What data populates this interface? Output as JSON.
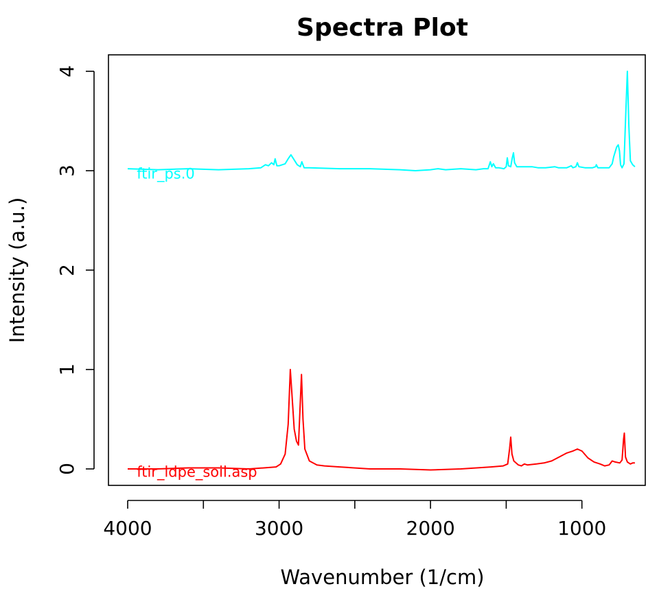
{
  "chart_data": {
    "type": "line",
    "title": "Spectra Plot",
    "xlabel": "Wavenumber (1/cm)",
    "ylabel": "Intensity (a.u.)",
    "xlim": [
      4000,
      650
    ],
    "ylim": [
      -0.15,
      4.15
    ],
    "x_reversed": true,
    "grid": false,
    "x_ticks": [
      4000,
      3500,
      3000,
      2500,
      2000,
      1500,
      1000
    ],
    "x_tick_labels": [
      "4000",
      "3000",
      "2000",
      "1000"
    ],
    "y_ticks": [
      0,
      1,
      2,
      3,
      4
    ],
    "y_tick_labels": [
      "0",
      "1",
      "2",
      "3",
      "4"
    ],
    "series": [
      {
        "name": "ftir_ps.0",
        "color": "#00FFFF",
        "label_at": [
          3940,
          2.92
        ],
        "points": [
          [
            4000,
            3.02
          ],
          [
            3800,
            3.01
          ],
          [
            3600,
            3.02
          ],
          [
            3400,
            3.01
          ],
          [
            3200,
            3.02
          ],
          [
            3120,
            3.03
          ],
          [
            3090,
            3.06
          ],
          [
            3070,
            3.05
          ],
          [
            3050,
            3.08
          ],
          [
            3035,
            3.06
          ],
          [
            3026,
            3.12
          ],
          [
            3015,
            3.05
          ],
          [
            3000,
            3.05
          ],
          [
            2960,
            3.07
          ],
          [
            2940,
            3.12
          ],
          [
            2922,
            3.16
          ],
          [
            2905,
            3.12
          ],
          [
            2880,
            3.06
          ],
          [
            2860,
            3.04
          ],
          [
            2850,
            3.09
          ],
          [
            2835,
            3.03
          ],
          [
            2800,
            3.03
          ],
          [
            2600,
            3.02
          ],
          [
            2400,
            3.02
          ],
          [
            2200,
            3.01
          ],
          [
            2100,
            3.0
          ],
          [
            2000,
            3.01
          ],
          [
            1950,
            3.02
          ],
          [
            1900,
            3.01
          ],
          [
            1800,
            3.02
          ],
          [
            1700,
            3.01
          ],
          [
            1650,
            3.02
          ],
          [
            1620,
            3.02
          ],
          [
            1605,
            3.09
          ],
          [
            1595,
            3.04
          ],
          [
            1585,
            3.07
          ],
          [
            1570,
            3.03
          ],
          [
            1550,
            3.03
          ],
          [
            1515,
            3.02
          ],
          [
            1500,
            3.04
          ],
          [
            1493,
            3.13
          ],
          [
            1485,
            3.05
          ],
          [
            1470,
            3.04
          ],
          [
            1460,
            3.13
          ],
          [
            1452,
            3.18
          ],
          [
            1445,
            3.08
          ],
          [
            1430,
            3.04
          ],
          [
            1380,
            3.04
          ],
          [
            1330,
            3.04
          ],
          [
            1290,
            3.03
          ],
          [
            1240,
            3.03
          ],
          [
            1180,
            3.04
          ],
          [
            1155,
            3.03
          ],
          [
            1130,
            3.03
          ],
          [
            1100,
            3.03
          ],
          [
            1070,
            3.05
          ],
          [
            1060,
            3.03
          ],
          [
            1040,
            3.04
          ],
          [
            1030,
            3.08
          ],
          [
            1020,
            3.04
          ],
          [
            980,
            3.03
          ],
          [
            930,
            3.03
          ],
          [
            910,
            3.04
          ],
          [
            905,
            3.06
          ],
          [
            895,
            3.03
          ],
          [
            860,
            3.03
          ],
          [
            840,
            3.03
          ],
          [
            820,
            3.03
          ],
          [
            800,
            3.07
          ],
          [
            790,
            3.14
          ],
          [
            770,
            3.24
          ],
          [
            760,
            3.26
          ],
          [
            752,
            3.2
          ],
          [
            745,
            3.06
          ],
          [
            735,
            3.03
          ],
          [
            722,
            3.07
          ],
          [
            712,
            3.5
          ],
          [
            700,
            4.0
          ],
          [
            690,
            3.45
          ],
          [
            680,
            3.1
          ],
          [
            665,
            3.06
          ],
          [
            650,
            3.04
          ]
        ]
      },
      {
        "name": "ftir_ldpe_soil.asp",
        "color": "#FF0000",
        "label_at": [
          3940,
          -0.08
        ],
        "points": [
          [
            4000,
            0.0
          ],
          [
            3800,
            0.0
          ],
          [
            3600,
            0.01
          ],
          [
            3400,
            0.01
          ],
          [
            3200,
            0.0
          ],
          [
            3100,
            0.01
          ],
          [
            3020,
            0.02
          ],
          [
            2990,
            0.05
          ],
          [
            2960,
            0.15
          ],
          [
            2940,
            0.45
          ],
          [
            2926,
            1.0
          ],
          [
            2915,
            0.75
          ],
          [
            2900,
            0.4
          ],
          [
            2885,
            0.28
          ],
          [
            2872,
            0.24
          ],
          [
            2862,
            0.6
          ],
          [
            2852,
            0.95
          ],
          [
            2842,
            0.5
          ],
          [
            2830,
            0.2
          ],
          [
            2800,
            0.08
          ],
          [
            2750,
            0.04
          ],
          [
            2700,
            0.03
          ],
          [
            2600,
            0.02
          ],
          [
            2400,
            0.0
          ],
          [
            2200,
            0.0
          ],
          [
            2000,
            -0.01
          ],
          [
            1800,
            0.0
          ],
          [
            1600,
            0.02
          ],
          [
            1520,
            0.03
          ],
          [
            1490,
            0.05
          ],
          [
            1478,
            0.2
          ],
          [
            1470,
            0.32
          ],
          [
            1462,
            0.15
          ],
          [
            1450,
            0.08
          ],
          [
            1420,
            0.04
          ],
          [
            1400,
            0.03
          ],
          [
            1380,
            0.05
          ],
          [
            1360,
            0.04
          ],
          [
            1300,
            0.05
          ],
          [
            1250,
            0.06
          ],
          [
            1200,
            0.08
          ],
          [
            1150,
            0.12
          ],
          [
            1100,
            0.16
          ],
          [
            1060,
            0.18
          ],
          [
            1030,
            0.2
          ],
          [
            1000,
            0.18
          ],
          [
            960,
            0.11
          ],
          [
            920,
            0.07
          ],
          [
            880,
            0.05
          ],
          [
            850,
            0.03
          ],
          [
            820,
            0.04
          ],
          [
            800,
            0.08
          ],
          [
            780,
            0.07
          ],
          [
            750,
            0.06
          ],
          [
            735,
            0.09
          ],
          [
            725,
            0.3
          ],
          [
            720,
            0.36
          ],
          [
            712,
            0.12
          ],
          [
            700,
            0.07
          ],
          [
            680,
            0.05
          ],
          [
            665,
            0.06
          ],
          [
            650,
            0.06
          ]
        ]
      }
    ]
  }
}
